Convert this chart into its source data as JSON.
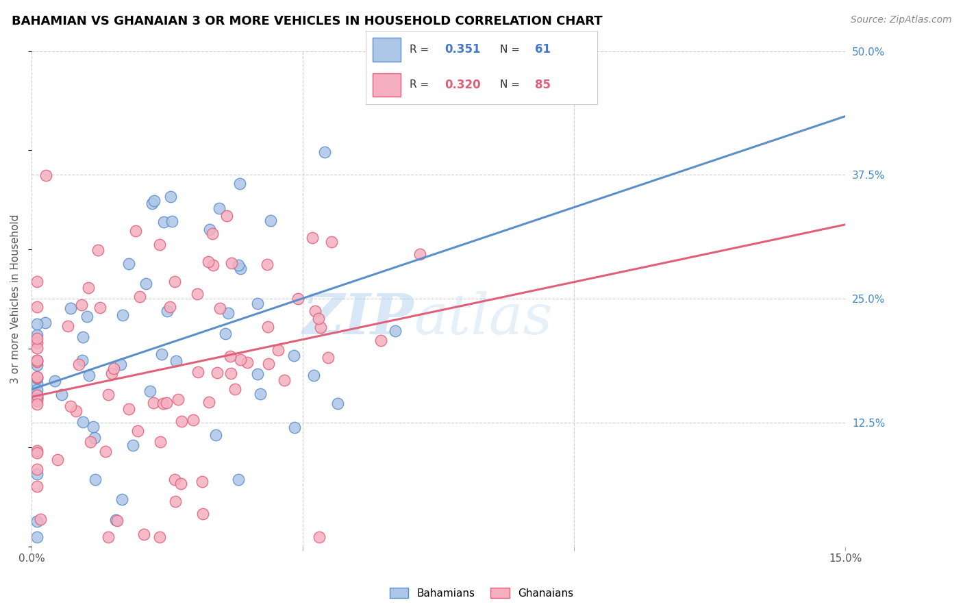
{
  "title": "BAHAMIAN VS GHANAIAN 3 OR MORE VEHICLES IN HOUSEHOLD CORRELATION CHART",
  "source": "Source: ZipAtlas.com",
  "ylabel": "3 or more Vehicles in Household",
  "x_min": 0.0,
  "x_max": 0.15,
  "y_min": 0.0,
  "y_max": 0.5,
  "y_ticks_right": [
    0.125,
    0.25,
    0.375,
    0.5
  ],
  "y_tick_labels_right": [
    "12.5%",
    "25.0%",
    "37.5%",
    "50.0%"
  ],
  "bahamian_color": "#aec6e8",
  "ghanaian_color": "#f5afc0",
  "bahamian_edge_color": "#5b8fc9",
  "ghanaian_edge_color": "#e0607a",
  "bahamian_line_color": "#5b8fc9",
  "ghanaian_line_color": "#e0607a",
  "bahamian_R": 0.351,
  "bahamian_N": 61,
  "ghanaian_R": 0.32,
  "ghanaian_N": 85,
  "legend_label_1": "Bahamians",
  "legend_label_2": "Ghanaians",
  "watermark_zip": "ZIP",
  "watermark_atlas": "atlas",
  "r_color_blue": "#4477cc",
  "r_color_pink": "#e0607a"
}
